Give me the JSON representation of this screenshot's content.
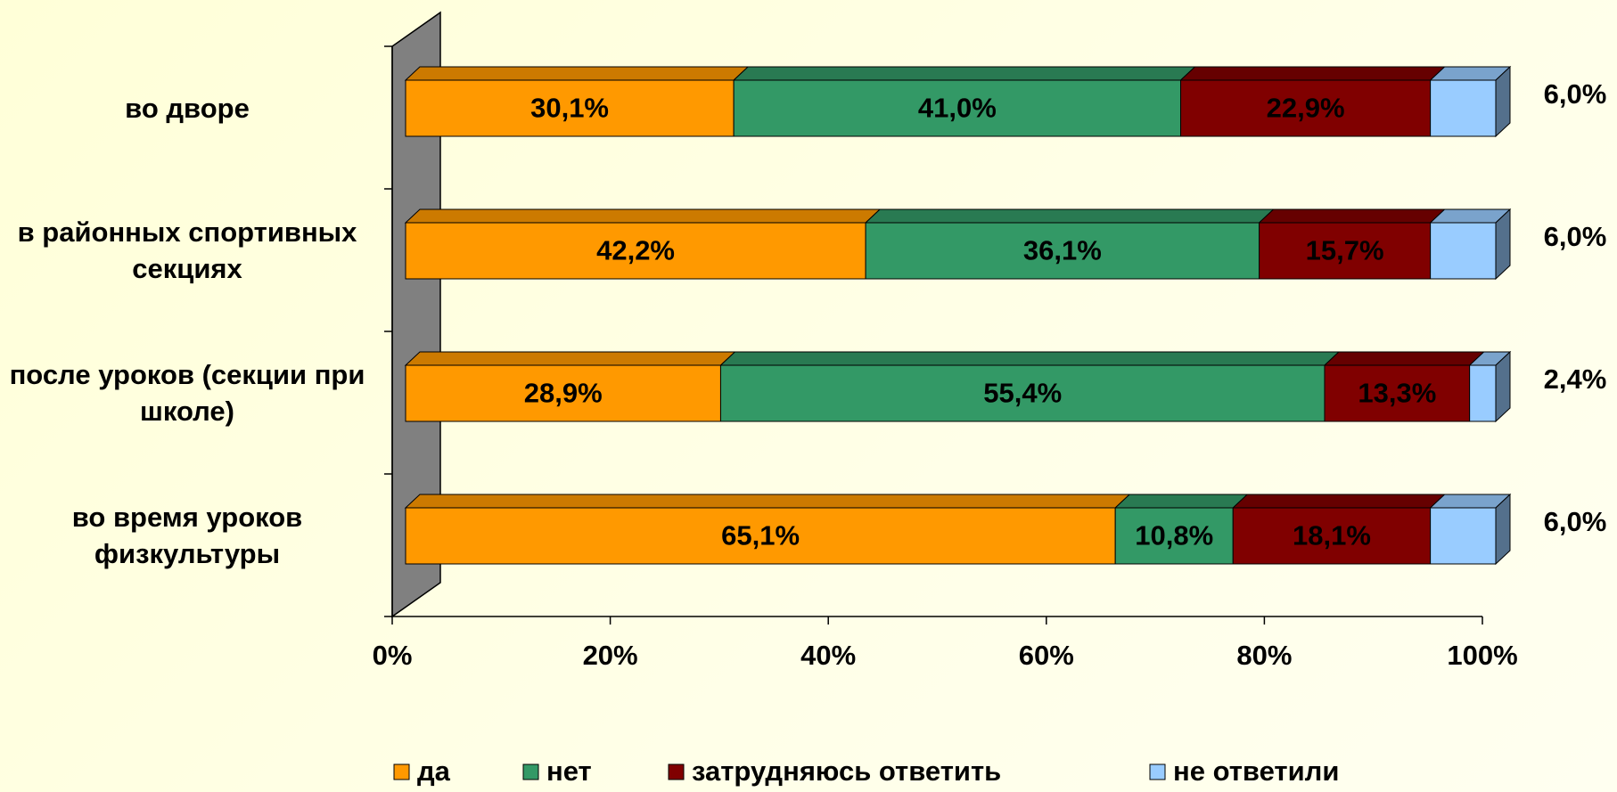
{
  "chart_data": {
    "type": "stacked_bar_3d_horizontal",
    "categories": [
      "во дворе",
      "в районных спортивных секциях",
      "после уроков (секции при школе)",
      "во время уроков физкультуры"
    ],
    "series": [
      {
        "name": "да",
        "color": "#ff9900",
        "values": [
          30.1,
          42.2,
          28.9,
          65.1
        ],
        "value_labels": [
          "30,1%",
          "42,2%",
          "28,9%",
          "65,1%"
        ]
      },
      {
        "name": "нет",
        "color": "#339966",
        "values": [
          41.0,
          36.1,
          55.4,
          10.8
        ],
        "value_labels": [
          "41,0%",
          "36,1%",
          "55,4%",
          "10,8%"
        ]
      },
      {
        "name": "затрудняюсь ответить",
        "color": "#800000",
        "values": [
          22.9,
          15.7,
          13.3,
          18.1
        ],
        "value_labels": [
          "22,9%",
          "15,7%",
          "13,3%",
          "18,1%"
        ]
      },
      {
        "name": "не ответили",
        "color": "#99ccff",
        "values": [
          6.0,
          6.0,
          2.4,
          6.0
        ],
        "value_labels": [
          "6,0%",
          "6,0%",
          "2,4%",
          "6,0%"
        ]
      }
    ],
    "xlim": [
      0,
      100
    ],
    "xticks": [
      {
        "value": 0,
        "label": "0%"
      },
      {
        "value": 20,
        "label": "20%"
      },
      {
        "value": 40,
        "label": "40%"
      },
      {
        "value": 60,
        "label": "60%"
      },
      {
        "value": 80,
        "label": "80%"
      },
      {
        "value": 100,
        "label": "100%"
      }
    ],
    "legend": "bottom"
  }
}
